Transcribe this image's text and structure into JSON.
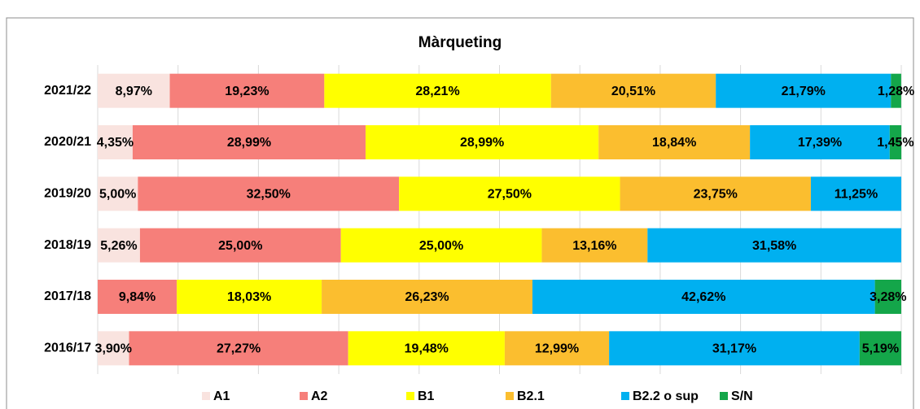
{
  "chart_data": {
    "type": "stacked-bar-horizontal",
    "title": "Màrqueting",
    "categories": [
      "2021/22",
      "2020/21",
      "2019/20",
      "2018/19",
      "2017/18",
      "2016/17"
    ],
    "series": [
      {
        "name": "A1",
        "color": "#f9e3df",
        "values": [
          8.97,
          4.35,
          5.0,
          5.26,
          null,
          3.9
        ],
        "value_labels": [
          "8,97%",
          "4,35%",
          "5,00%",
          "5,26%",
          null,
          "3,90%"
        ]
      },
      {
        "name": "A2",
        "color": "#f67f7a",
        "values": [
          19.23,
          28.99,
          32.5,
          25.0,
          9.84,
          27.27
        ],
        "value_labels": [
          "19,23%",
          "28,99%",
          "32,50%",
          "25,00%",
          "9,84%",
          "27,27%"
        ]
      },
      {
        "name": "B1",
        "color": "#ffff00",
        "values": [
          28.21,
          28.99,
          27.5,
          25.0,
          18.03,
          19.48
        ],
        "value_labels": [
          "28,21%",
          "28,99%",
          "27,50%",
          "25,00%",
          "18,03%",
          "19,48%"
        ]
      },
      {
        "name": "B2.1",
        "color": "#fbbe2f",
        "values": [
          20.51,
          18.84,
          23.75,
          13.16,
          26.23,
          12.99
        ],
        "value_labels": [
          "20,51%",
          "18,84%",
          "23,75%",
          "13,16%",
          "26,23%",
          "12,99%"
        ]
      },
      {
        "name": "B2.2 o sup",
        "color": "#00b0f0",
        "values": [
          21.79,
          17.39,
          11.25,
          31.58,
          42.62,
          31.17
        ],
        "value_labels": [
          "21,79%",
          "17,39%",
          "11,25%",
          "31,58%",
          "42,62%",
          "31,17%"
        ]
      },
      {
        "name": "S/N",
        "color": "#14a64a",
        "values": [
          1.28,
          1.45,
          null,
          null,
          3.28,
          5.19
        ],
        "value_labels": [
          "1,28%",
          "1,45%",
          null,
          null,
          "3,28%",
          "5,19%"
        ]
      }
    ],
    "xlim": [
      0,
      100
    ],
    "xticks": [
      0,
      10,
      20,
      30,
      40,
      50,
      60,
      70,
      80,
      90,
      100
    ],
    "grid": true,
    "legend": "bottom"
  }
}
